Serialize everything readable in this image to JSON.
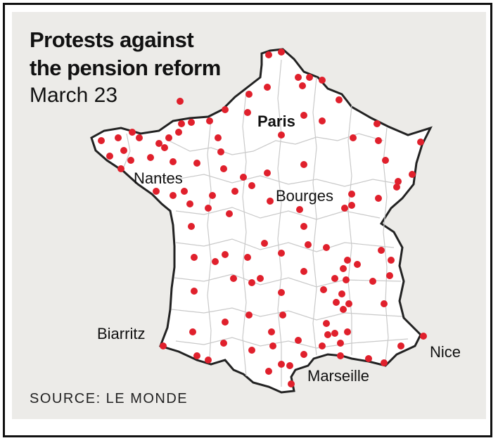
{
  "title_line1": "Protests against",
  "title_line2": "the pension reform",
  "subtitle": "March 23",
  "source": "SOURCE: LE MONDE",
  "colors": {
    "panel": "#ecebe8",
    "land": "#ffffff",
    "border": "#222222",
    "inner_border": "#c9c9c9",
    "dot": "#e0202c"
  },
  "cities": [
    {
      "id": "paris",
      "label": "Paris",
      "bold": true
    },
    {
      "id": "nantes",
      "label": "Nantes",
      "bold": false
    },
    {
      "id": "bourges",
      "label": "Bourges",
      "bold": false
    },
    {
      "id": "biarritz",
      "label": "Biarritz",
      "bold": false
    },
    {
      "id": "marseille",
      "label": "Marseille",
      "bold": false
    },
    {
      "id": "nice",
      "label": "Nice",
      "bold": false
    }
  ],
  "protest_marker": "red-dot"
}
